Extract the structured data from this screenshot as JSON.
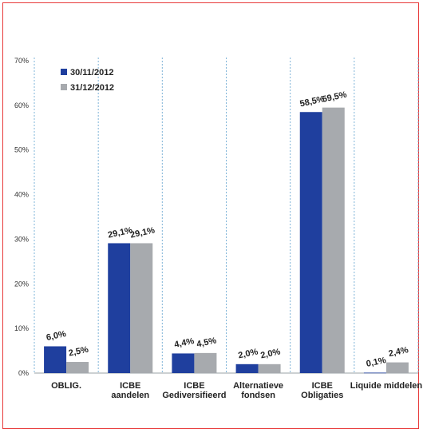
{
  "chart_data": {
    "type": "bar",
    "categories": [
      [
        "OBLIG."
      ],
      [
        "ICBE",
        "aandelen"
      ],
      [
        "ICBE",
        "Gediversifieerd"
      ],
      [
        "Alternatieve",
        "fondsen"
      ],
      [
        "ICBE",
        "Obligaties"
      ],
      [
        "Liquide middelen"
      ]
    ],
    "series": [
      {
        "name": "30/11/2012",
        "color": "#1f3f9e",
        "values": [
          6.0,
          29.1,
          4.4,
          2.0,
          58.5,
          0.1
        ],
        "labels": [
          "6,0%",
          "29,1%",
          "4,4%",
          "2,0%",
          "58,5%",
          "0,1%"
        ]
      },
      {
        "name": "31/12/2012",
        "color": "#a7aaae",
        "values": [
          2.5,
          29.1,
          4.5,
          2.0,
          59.5,
          2.4
        ],
        "labels": [
          "2,5%",
          "29,1%",
          "4,5%",
          "2,0%",
          "59,5%",
          "2,4%"
        ]
      }
    ],
    "ylim": [
      0,
      70
    ],
    "yticks": [
      "0%",
      "10%",
      "20%",
      "30%",
      "40%",
      "50%",
      "60%",
      "70%"
    ],
    "legend_position": "top-left",
    "grid": "vertical dashed category separators"
  }
}
